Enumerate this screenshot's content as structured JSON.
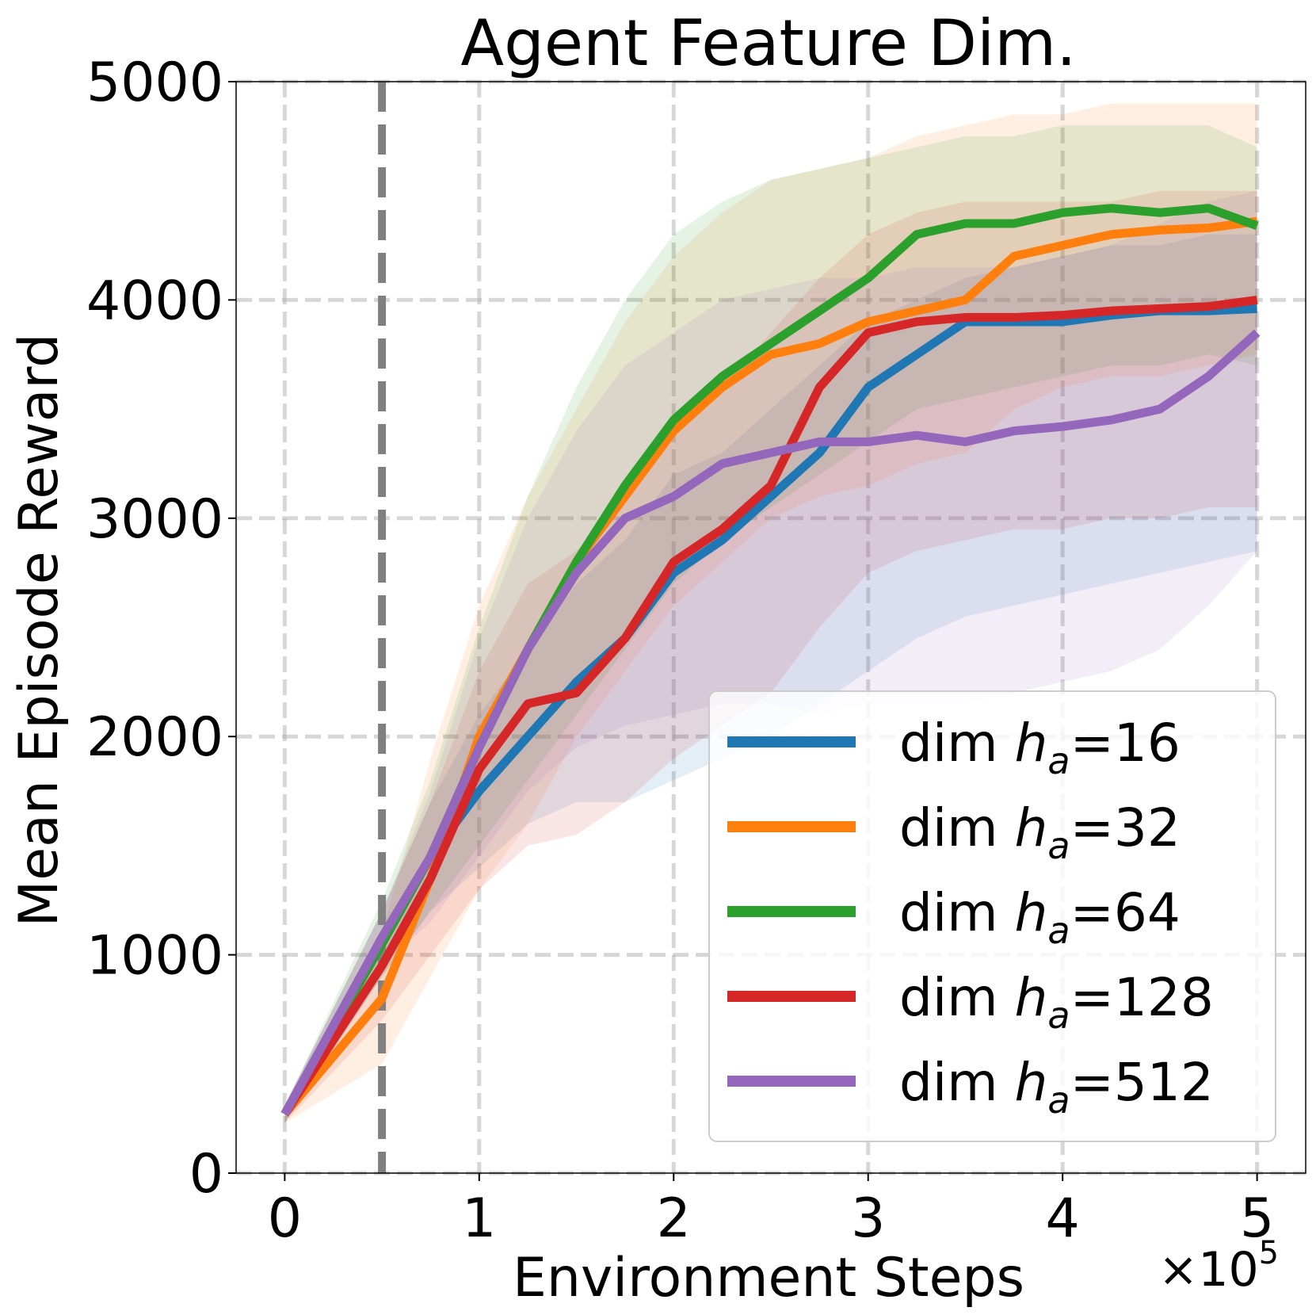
{
  "chart_data": {
    "type": "line",
    "title": "Agent Feature Dim.",
    "xlabel": "Environment Steps",
    "ylabel": "Mean Episode Reward",
    "x_multiplier_base": "×10",
    "x_multiplier_exp": "5",
    "xlim": [
      -0.25,
      5.25
    ],
    "ylim": [
      0,
      5000
    ],
    "xticks": [
      0,
      1,
      2,
      3,
      4,
      5
    ],
    "xtick_labels": [
      "0",
      "1",
      "2",
      "3",
      "4",
      "5"
    ],
    "yticks": [
      0,
      1000,
      2000,
      3000,
      4000,
      5000
    ],
    "ytick_labels": [
      "0",
      "1000",
      "2000",
      "3000",
      "4000",
      "5000"
    ],
    "grid": true,
    "vline_x": 0.5,
    "legend_position": "lower-right",
    "legend_prefix": "dim ",
    "legend_var": "h",
    "legend_sub": "a",
    "series": [
      {
        "name": "dim h_a=16",
        "label_value": "=16",
        "color": "#1f77b4",
        "points": [
          [
            0,
            270
          ],
          [
            0.5,
            1050
          ],
          [
            0.75,
            1450
          ],
          [
            1,
            1750
          ],
          [
            1.25,
            2000
          ],
          [
            1.5,
            2250
          ],
          [
            1.75,
            2450
          ],
          [
            2,
            2750
          ],
          [
            2.25,
            2900
          ],
          [
            2.5,
            3100
          ],
          [
            2.75,
            3300
          ],
          [
            3,
            3600
          ],
          [
            3.25,
            3750
          ],
          [
            3.5,
            3900
          ],
          [
            3.75,
            3900
          ],
          [
            4,
            3900
          ],
          [
            4.25,
            3930
          ],
          [
            4.5,
            3950
          ],
          [
            4.75,
            3950
          ],
          [
            5,
            3960
          ]
        ],
        "band": [
          [
            0,
            230,
            310
          ],
          [
            0.5,
            900,
            1200
          ],
          [
            0.75,
            1200,
            1700
          ],
          [
            1,
            1400,
            2100
          ],
          [
            1.25,
            1600,
            2400
          ],
          [
            1.5,
            1700,
            2700
          ],
          [
            1.75,
            1700,
            2900
          ],
          [
            2,
            1800,
            3200
          ],
          [
            2.25,
            1900,
            3300
          ],
          [
            2.5,
            2000,
            3500
          ],
          [
            2.75,
            2150,
            3700
          ],
          [
            3,
            2300,
            3900
          ],
          [
            3.25,
            2450,
            4000
          ],
          [
            3.5,
            2550,
            4100
          ],
          [
            3.75,
            2600,
            4150
          ],
          [
            4,
            2650,
            4200
          ],
          [
            4.25,
            2700,
            4250
          ],
          [
            4.5,
            2750,
            4250
          ],
          [
            4.75,
            2800,
            4300
          ],
          [
            5,
            2850,
            4300
          ]
        ]
      },
      {
        "name": "dim h_a=32",
        "label_value": "=32",
        "color": "#ff7f0e",
        "points": [
          [
            0,
            270
          ],
          [
            0.5,
            800
          ],
          [
            0.75,
            1350
          ],
          [
            1,
            2000
          ],
          [
            1.25,
            2400
          ],
          [
            1.5,
            2800
          ],
          [
            1.75,
            3100
          ],
          [
            2,
            3400
          ],
          [
            2.25,
            3600
          ],
          [
            2.5,
            3750
          ],
          [
            2.75,
            3800
          ],
          [
            3,
            3900
          ],
          [
            3.25,
            3950
          ],
          [
            3.5,
            4000
          ],
          [
            3.75,
            4200
          ],
          [
            4,
            4250
          ],
          [
            4.25,
            4300
          ],
          [
            4.5,
            4320
          ],
          [
            4.75,
            4330
          ],
          [
            5,
            4360
          ]
        ],
        "band": [
          [
            0,
            230,
            310
          ],
          [
            0.5,
            500,
            1100
          ],
          [
            0.75,
            900,
            1900
          ],
          [
            1,
            1300,
            2600
          ],
          [
            1.25,
            1600,
            3100
          ],
          [
            1.5,
            2000,
            3500
          ],
          [
            1.75,
            2300,
            3900
          ],
          [
            2,
            2600,
            4200
          ],
          [
            2.25,
            2800,
            4400
          ],
          [
            2.5,
            3000,
            4550
          ],
          [
            2.75,
            3100,
            4600
          ],
          [
            3,
            3150,
            4650
          ],
          [
            3.25,
            3250,
            4750
          ],
          [
            3.5,
            3300,
            4800
          ],
          [
            3.75,
            3500,
            4850
          ],
          [
            4,
            3600,
            4850
          ],
          [
            4.25,
            3650,
            4900
          ],
          [
            4.5,
            3650,
            4900
          ],
          [
            4.75,
            3700,
            4900
          ],
          [
            5,
            3750,
            4900
          ]
        ]
      },
      {
        "name": "dim h_a=64",
        "label_value": "=64",
        "color": "#2ca02c",
        "points": [
          [
            0,
            270
          ],
          [
            0.5,
            1050
          ],
          [
            0.75,
            1450
          ],
          [
            1,
            1950
          ],
          [
            1.25,
            2400
          ],
          [
            1.5,
            2800
          ],
          [
            1.75,
            3150
          ],
          [
            2,
            3450
          ],
          [
            2.25,
            3650
          ],
          [
            2.5,
            3800
          ],
          [
            2.75,
            3950
          ],
          [
            3,
            4100
          ],
          [
            3.25,
            4300
          ],
          [
            3.5,
            4350
          ],
          [
            3.75,
            4350
          ],
          [
            4,
            4400
          ],
          [
            4.25,
            4420
          ],
          [
            4.5,
            4400
          ],
          [
            4.75,
            4420
          ],
          [
            5,
            4340
          ]
        ],
        "band": [
          [
            0,
            230,
            310
          ],
          [
            0.5,
            900,
            1250
          ],
          [
            0.75,
            1200,
            1800
          ],
          [
            1,
            1500,
            2500
          ],
          [
            1.25,
            1800,
            3100
          ],
          [
            1.5,
            2100,
            3600
          ],
          [
            1.75,
            2400,
            4000
          ],
          [
            2,
            2700,
            4300
          ],
          [
            2.25,
            2900,
            4450
          ],
          [
            2.5,
            3050,
            4550
          ],
          [
            2.75,
            3200,
            4600
          ],
          [
            3,
            3350,
            4650
          ],
          [
            3.25,
            3500,
            4700
          ],
          [
            3.5,
            3550,
            4750
          ],
          [
            3.75,
            3600,
            4750
          ],
          [
            4,
            3650,
            4800
          ],
          [
            4.25,
            3700,
            4800
          ],
          [
            4.5,
            3700,
            4800
          ],
          [
            4.75,
            3750,
            4800
          ],
          [
            5,
            3700,
            4700
          ]
        ]
      },
      {
        "name": "dim h_a=128",
        "label_value": "=128",
        "color": "#d62728",
        "points": [
          [
            0,
            270
          ],
          [
            0.5,
            950
          ],
          [
            0.75,
            1350
          ],
          [
            1,
            1850
          ],
          [
            1.25,
            2150
          ],
          [
            1.5,
            2200
          ],
          [
            1.75,
            2450
          ],
          [
            2,
            2800
          ],
          [
            2.25,
            2950
          ],
          [
            2.5,
            3150
          ],
          [
            2.75,
            3600
          ],
          [
            3,
            3850
          ],
          [
            3.25,
            3900
          ],
          [
            3.5,
            3920
          ],
          [
            3.75,
            3920
          ],
          [
            4,
            3930
          ],
          [
            4.25,
            3950
          ],
          [
            4.5,
            3960
          ],
          [
            4.75,
            3970
          ],
          [
            5,
            4000
          ]
        ],
        "band": [
          [
            0,
            230,
            310
          ],
          [
            0.5,
            700,
            1200
          ],
          [
            0.75,
            1000,
            1700
          ],
          [
            1,
            1300,
            2300
          ],
          [
            1.25,
            1500,
            2700
          ],
          [
            1.5,
            1550,
            2850
          ],
          [
            1.75,
            1700,
            3100
          ],
          [
            2,
            1900,
            3400
          ],
          [
            2.25,
            2050,
            3600
          ],
          [
            2.5,
            2200,
            3850
          ],
          [
            2.75,
            2500,
            4100
          ],
          [
            3,
            2750,
            4300
          ],
          [
            3.25,
            2850,
            4400
          ],
          [
            3.5,
            2900,
            4450
          ],
          [
            3.75,
            2950,
            4450
          ],
          [
            4,
            2950,
            4450
          ],
          [
            4.25,
            3000,
            4450
          ],
          [
            4.5,
            3000,
            4500
          ],
          [
            4.75,
            3050,
            4500
          ],
          [
            5,
            3050,
            4500
          ]
        ]
      },
      {
        "name": "dim h_a=512",
        "label_value": "=512",
        "color": "#9467bd",
        "points": [
          [
            0,
            270
          ],
          [
            0.5,
            1080
          ],
          [
            0.75,
            1450
          ],
          [
            1,
            1950
          ],
          [
            1.25,
            2400
          ],
          [
            1.5,
            2750
          ],
          [
            1.75,
            3000
          ],
          [
            2,
            3100
          ],
          [
            2.25,
            3250
          ],
          [
            2.5,
            3300
          ],
          [
            2.75,
            3350
          ],
          [
            3,
            3350
          ],
          [
            3.25,
            3380
          ],
          [
            3.5,
            3350
          ],
          [
            3.75,
            3400
          ],
          [
            4,
            3420
          ],
          [
            4.25,
            3450
          ],
          [
            4.5,
            3500
          ],
          [
            4.75,
            3650
          ],
          [
            5,
            3850
          ]
        ],
        "band": [
          [
            0,
            230,
            310
          ],
          [
            0.5,
            950,
            1200
          ],
          [
            0.75,
            1150,
            1750
          ],
          [
            1,
            1450,
            2450
          ],
          [
            1.25,
            1750,
            3000
          ],
          [
            1.5,
            1950,
            3400
          ],
          [
            1.75,
            2050,
            3700
          ],
          [
            2,
            2100,
            3850
          ],
          [
            2.25,
            2150,
            4000
          ],
          [
            2.5,
            2150,
            4050
          ],
          [
            2.75,
            2100,
            4100
          ],
          [
            3,
            2150,
            4100
          ],
          [
            3.25,
            2150,
            4150
          ],
          [
            3.5,
            2150,
            4150
          ],
          [
            3.75,
            2200,
            4150
          ],
          [
            4,
            2250,
            4200
          ],
          [
            4.25,
            2300,
            4250
          ],
          [
            4.5,
            2400,
            4350
          ],
          [
            4.75,
            2600,
            4450
          ],
          [
            5,
            2850,
            4500
          ]
        ]
      }
    ]
  }
}
